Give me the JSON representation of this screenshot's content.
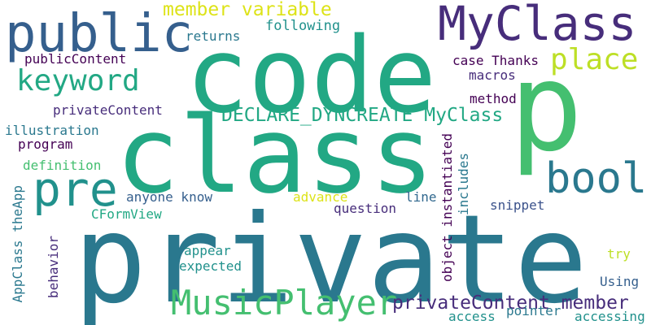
{
  "words": [
    {
      "text": "private"
    },
    {
      "text": "code"
    },
    {
      "text": "class"
    },
    {
      "text": "p"
    },
    {
      "text": "public"
    },
    {
      "text": "MyClass"
    },
    {
      "text": "pre"
    },
    {
      "text": "bool"
    },
    {
      "text": "MusicPlayer"
    },
    {
      "text": "keyword"
    },
    {
      "text": "place"
    },
    {
      "text": "privateContent member"
    },
    {
      "text": "DECLARE_DYNCREATE MyClass"
    },
    {
      "text": "member variable"
    },
    {
      "text": "following"
    },
    {
      "text": "returns"
    },
    {
      "text": "publicContent"
    },
    {
      "text": "case Thanks"
    },
    {
      "text": "macros"
    },
    {
      "text": "privateContent"
    },
    {
      "text": "method"
    },
    {
      "text": "illustration"
    },
    {
      "text": "program"
    },
    {
      "text": "definition"
    },
    {
      "text": "object instantiated"
    },
    {
      "text": "includes"
    },
    {
      "text": "anyone know"
    },
    {
      "text": "advance"
    },
    {
      "text": "line"
    },
    {
      "text": "question"
    },
    {
      "text": "snippet"
    },
    {
      "text": "AppClass theApp"
    },
    {
      "text": "CFormView"
    },
    {
      "text": "behavior"
    },
    {
      "text": "appear"
    },
    {
      "text": "expected"
    },
    {
      "text": "try"
    },
    {
      "text": "Using"
    },
    {
      "text": "access"
    },
    {
      "text": "pointer"
    },
    {
      "text": "accessing"
    }
  ],
  "colors": {
    "teal_dark": "#2a788e",
    "teal": "#21918c",
    "green_teal": "#22a884",
    "green": "#44bf70",
    "lime": "#7ad151",
    "yellow_green": "#bddf26",
    "yellow": "#dde318",
    "purple": "#440154",
    "indigo": "#3b528b",
    "violet": "#472d7b",
    "blue": "#31688e",
    "slate": "#355f8d"
  }
}
